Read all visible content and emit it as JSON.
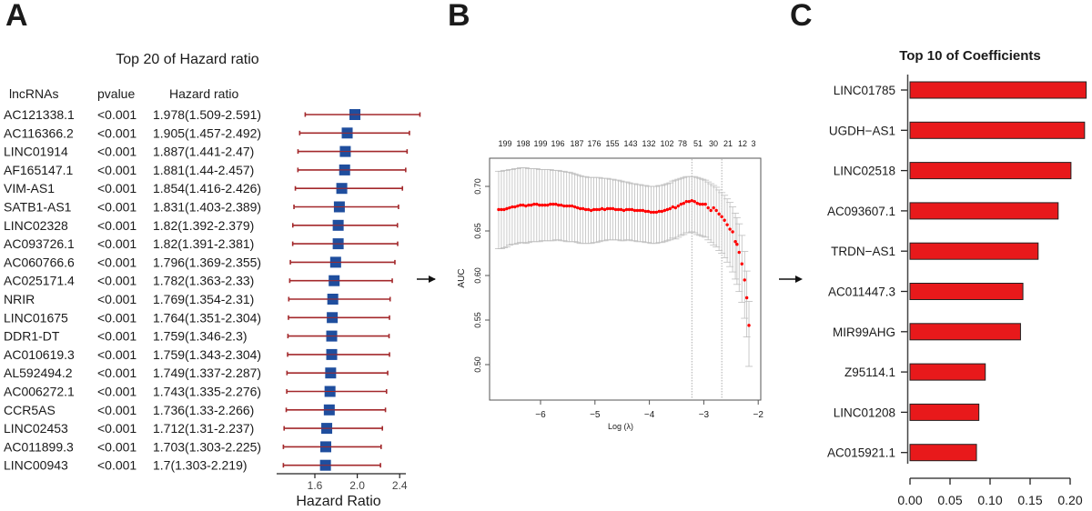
{
  "panels": {
    "a_letter": "A",
    "b_letter": "B",
    "c_letter": "C"
  },
  "chart_data": [
    {
      "type": "table",
      "subtype": "forest",
      "panel": "A",
      "title": "Top 20 of  Hazard ratio",
      "columns": [
        "lncRNAs",
        "pvalue",
        "Hazard ratio"
      ],
      "xlabel": "Hazard Ratio",
      "xticks": [
        1.6,
        2.0,
        2.4
      ],
      "xlim": [
        1.25,
        2.65
      ],
      "colors": {
        "box": "#1f4e9e",
        "ci": "#a3282b"
      },
      "rows": [
        {
          "name": "AC121338.1",
          "p": "<0.001",
          "hr_text": "1.978(1.509-2.591)",
          "hr": 1.978,
          "lo": 1.509,
          "hi": 2.591
        },
        {
          "name": "AC116366.2",
          "p": "<0.001",
          "hr_text": "1.905(1.457-2.492)",
          "hr": 1.905,
          "lo": 1.457,
          "hi": 2.492
        },
        {
          "name": "LINC01914",
          "p": "<0.001",
          "hr_text": "1.887(1.441-2.47)",
          "hr": 1.887,
          "lo": 1.441,
          "hi": 2.47
        },
        {
          "name": "AF165147.1",
          "p": "<0.001",
          "hr_text": "1.881(1.44-2.457)",
          "hr": 1.881,
          "lo": 1.44,
          "hi": 2.457
        },
        {
          "name": "VIM-AS1",
          "p": "<0.001",
          "hr_text": "1.854(1.416-2.426)",
          "hr": 1.854,
          "lo": 1.416,
          "hi": 2.426
        },
        {
          "name": "SATB1-AS1",
          "p": "<0.001",
          "hr_text": "1.831(1.403-2.389)",
          "hr": 1.831,
          "lo": 1.403,
          "hi": 2.389
        },
        {
          "name": "LINC02328",
          "p": "<0.001",
          "hr_text": "1.82(1.392-2.379)",
          "hr": 1.82,
          "lo": 1.392,
          "hi": 2.379
        },
        {
          "name": "AC093726.1",
          "p": "<0.001",
          "hr_text": "1.82(1.391-2.381)",
          "hr": 1.82,
          "lo": 1.391,
          "hi": 2.381
        },
        {
          "name": "AC060766.6",
          "p": "<0.001",
          "hr_text": "1.796(1.369-2.355)",
          "hr": 1.796,
          "lo": 1.369,
          "hi": 2.355
        },
        {
          "name": "AC025171.4",
          "p": "<0.001",
          "hr_text": "1.782(1.363-2.33)",
          "hr": 1.782,
          "lo": 1.363,
          "hi": 2.33
        },
        {
          "name": "NRIR",
          "p": "<0.001",
          "hr_text": "1.769(1.354-2.31)",
          "hr": 1.769,
          "lo": 1.354,
          "hi": 2.31
        },
        {
          "name": "LINC01675",
          "p": "<0.001",
          "hr_text": "1.764(1.351-2.304)",
          "hr": 1.764,
          "lo": 1.351,
          "hi": 2.304
        },
        {
          "name": "DDR1-DT",
          "p": "<0.001",
          "hr_text": "1.759(1.346-2.3)",
          "hr": 1.759,
          "lo": 1.346,
          "hi": 2.3
        },
        {
          "name": "AC010619.3",
          "p": "<0.001",
          "hr_text": "1.759(1.343-2.304)",
          "hr": 1.759,
          "lo": 1.343,
          "hi": 2.304
        },
        {
          "name": "AL592494.2",
          "p": "<0.001",
          "hr_text": "1.749(1.337-2.287)",
          "hr": 1.749,
          "lo": 1.337,
          "hi": 2.287
        },
        {
          "name": "AC006272.1",
          "p": "<0.001",
          "hr_text": "1.743(1.335-2.276)",
          "hr": 1.743,
          "lo": 1.335,
          "hi": 2.276
        },
        {
          "name": "CCR5AS",
          "p": "<0.001",
          "hr_text": "1.736(1.33-2.266)",
          "hr": 1.736,
          "lo": 1.33,
          "hi": 2.266
        },
        {
          "name": "LINC02453",
          "p": "<0.001",
          "hr_text": "1.712(1.31-2.237)",
          "hr": 1.712,
          "lo": 1.31,
          "hi": 2.237
        },
        {
          "name": "AC011899.3",
          "p": "<0.001",
          "hr_text": "1.703(1.303-2.225)",
          "hr": 1.703,
          "lo": 1.303,
          "hi": 2.225
        },
        {
          "name": "LINC00943",
          "p": "<0.001",
          "hr_text": "1.7(1.303-2.219)",
          "hr": 1.7,
          "lo": 1.303,
          "hi": 2.219
        }
      ]
    },
    {
      "type": "scatter",
      "subtype": "lasso-cv-errorbar",
      "panel": "B",
      "title": "",
      "xlabel": "Log (λ)",
      "ylabel": "AUC",
      "xlim": [
        -6.94,
        -2.03
      ],
      "ylim": [
        0.467,
        0.733
      ],
      "xticks": [
        -6,
        -5,
        -4,
        -3,
        -2
      ],
      "yticks": [
        0.5,
        0.55,
        0.6,
        0.65,
        0.7
      ],
      "top_axis_labels": [
        "199",
        "198",
        "199",
        "196",
        "187",
        "176",
        "155",
        "143",
        "132",
        "102",
        "78",
        "51",
        "30",
        "21",
        "12",
        "3"
      ],
      "vlines": [
        -3.22,
        -2.67
      ],
      "colors": {
        "point": "#ff0000",
        "errorbar": "#bdbdbd",
        "vline": "#999999"
      },
      "points": [
        [
          -6.77,
          0.674,
          0.717,
          0.63
        ],
        [
          -6.72,
          0.674,
          0.717,
          0.63
        ],
        [
          -6.67,
          0.674,
          0.718,
          0.631
        ],
        [
          -6.62,
          0.675,
          0.718,
          0.632
        ],
        [
          -6.57,
          0.676,
          0.719,
          0.634
        ],
        [
          -6.52,
          0.677,
          0.719,
          0.635
        ],
        [
          -6.47,
          0.677,
          0.72,
          0.635
        ],
        [
          -6.42,
          0.678,
          0.72,
          0.636
        ],
        [
          -6.37,
          0.679,
          0.721,
          0.637
        ],
        [
          -6.32,
          0.679,
          0.721,
          0.637
        ],
        [
          -6.27,
          0.678,
          0.721,
          0.636
        ],
        [
          -6.22,
          0.679,
          0.72,
          0.637
        ],
        [
          -6.17,
          0.679,
          0.72,
          0.638
        ],
        [
          -6.12,
          0.68,
          0.72,
          0.638
        ],
        [
          -6.07,
          0.68,
          0.72,
          0.638
        ],
        [
          -6.02,
          0.679,
          0.719,
          0.638
        ],
        [
          -5.97,
          0.679,
          0.719,
          0.639
        ],
        [
          -5.92,
          0.679,
          0.719,
          0.639
        ],
        [
          -5.87,
          0.679,
          0.719,
          0.639
        ],
        [
          -5.82,
          0.68,
          0.719,
          0.639
        ],
        [
          -5.77,
          0.68,
          0.718,
          0.639
        ],
        [
          -5.72,
          0.68,
          0.718,
          0.64
        ],
        [
          -5.67,
          0.679,
          0.718,
          0.64
        ],
        [
          -5.62,
          0.679,
          0.717,
          0.639
        ],
        [
          -5.57,
          0.678,
          0.717,
          0.639
        ],
        [
          -5.52,
          0.678,
          0.716,
          0.638
        ],
        [
          -5.47,
          0.678,
          0.716,
          0.638
        ],
        [
          -5.42,
          0.678,
          0.715,
          0.638
        ],
        [
          -5.37,
          0.677,
          0.714,
          0.638
        ],
        [
          -5.32,
          0.676,
          0.713,
          0.637
        ],
        [
          -5.27,
          0.675,
          0.712,
          0.636
        ],
        [
          -5.22,
          0.675,
          0.711,
          0.636
        ],
        [
          -5.17,
          0.674,
          0.711,
          0.636
        ],
        [
          -5.12,
          0.674,
          0.71,
          0.636
        ],
        [
          -5.07,
          0.673,
          0.71,
          0.636
        ],
        [
          -5.02,
          0.674,
          0.71,
          0.637
        ],
        [
          -4.97,
          0.674,
          0.71,
          0.637
        ],
        [
          -4.92,
          0.674,
          0.71,
          0.638
        ],
        [
          -4.87,
          0.675,
          0.709,
          0.639
        ],
        [
          -4.82,
          0.674,
          0.709,
          0.639
        ],
        [
          -4.77,
          0.675,
          0.709,
          0.64
        ],
        [
          -4.72,
          0.675,
          0.708,
          0.64
        ],
        [
          -4.67,
          0.675,
          0.708,
          0.64
        ],
        [
          -4.62,
          0.674,
          0.707,
          0.64
        ],
        [
          -4.57,
          0.674,
          0.707,
          0.64
        ],
        [
          -4.52,
          0.674,
          0.706,
          0.639
        ],
        [
          -4.47,
          0.673,
          0.705,
          0.639
        ],
        [
          -4.42,
          0.674,
          0.705,
          0.64
        ],
        [
          -4.37,
          0.674,
          0.704,
          0.64
        ],
        [
          -4.32,
          0.674,
          0.703,
          0.639
        ],
        [
          -4.27,
          0.673,
          0.703,
          0.639
        ],
        [
          -4.22,
          0.673,
          0.702,
          0.638
        ],
        [
          -4.17,
          0.673,
          0.702,
          0.638
        ],
        [
          -4.12,
          0.673,
          0.701,
          0.638
        ],
        [
          -4.07,
          0.672,
          0.701,
          0.637
        ],
        [
          -4.02,
          0.672,
          0.7,
          0.637
        ],
        [
          -3.97,
          0.671,
          0.7,
          0.636
        ],
        [
          -3.92,
          0.671,
          0.7,
          0.636
        ],
        [
          -3.87,
          0.671,
          0.7,
          0.636
        ],
        [
          -3.82,
          0.672,
          0.701,
          0.637
        ],
        [
          -3.77,
          0.672,
          0.701,
          0.637
        ],
        [
          -3.72,
          0.673,
          0.702,
          0.638
        ],
        [
          -3.67,
          0.674,
          0.703,
          0.639
        ],
        [
          -3.62,
          0.675,
          0.704,
          0.64
        ],
        [
          -3.57,
          0.677,
          0.706,
          0.642
        ],
        [
          -3.52,
          0.676,
          0.707,
          0.641
        ],
        [
          -3.47,
          0.678,
          0.708,
          0.643
        ],
        [
          -3.42,
          0.68,
          0.709,
          0.645
        ],
        [
          -3.37,
          0.681,
          0.71,
          0.646
        ],
        [
          -3.32,
          0.683,
          0.711,
          0.648
        ],
        [
          -3.27,
          0.683,
          0.711,
          0.648
        ],
        [
          -3.22,
          0.684,
          0.711,
          0.649
        ],
        [
          -3.17,
          0.683,
          0.711,
          0.648
        ],
        [
          -3.12,
          0.681,
          0.71,
          0.646
        ],
        [
          -3.07,
          0.68,
          0.709,
          0.645
        ],
        [
          -3.02,
          0.68,
          0.708,
          0.644
        ],
        [
          -2.97,
          0.68,
          0.707,
          0.643
        ],
        [
          -2.92,
          0.676,
          0.705,
          0.64
        ],
        [
          -2.87,
          0.673,
          0.703,
          0.637
        ],
        [
          -2.82,
          0.676,
          0.701,
          0.634
        ],
        [
          -2.77,
          0.673,
          0.699,
          0.632
        ],
        [
          -2.72,
          0.669,
          0.696,
          0.628
        ],
        [
          -2.67,
          0.666,
          0.693,
          0.625
        ],
        [
          -2.62,
          0.662,
          0.69,
          0.62
        ],
        [
          -2.57,
          0.657,
          0.686,
          0.615
        ],
        [
          -2.52,
          0.652,
          0.682,
          0.61
        ],
        [
          -2.47,
          0.649,
          0.677,
          0.604
        ],
        [
          -2.42,
          0.638,
          0.67,
          0.596
        ],
        [
          -2.39,
          0.635,
          0.665,
          0.59
        ],
        [
          -2.35,
          0.626,
          0.658,
          0.582
        ],
        [
          -2.3,
          0.613,
          0.645,
          0.57
        ],
        [
          -2.25,
          0.595,
          0.627,
          0.552
        ],
        [
          -2.21,
          0.575,
          0.605,
          0.531
        ],
        [
          -2.17,
          0.544,
          0.571,
          0.498
        ]
      ]
    },
    {
      "type": "bar",
      "orientation": "horizontal",
      "panel": "C",
      "title": "Top 10 of Coefficients",
      "xlabel": "",
      "ylabel": "",
      "xlim": [
        0,
        0.22
      ],
      "xticks": [
        0.0,
        0.05,
        0.1,
        0.15,
        0.2
      ],
      "xtick_labels": [
        "0.00",
        "0.05",
        "0.10",
        "0.15",
        "0.20"
      ],
      "colors": {
        "bar": "#e8191b",
        "edge": "#222222"
      },
      "categories": [
        "LINC01785",
        "UGDH−AS1",
        "LINC02518",
        "AC093607.1",
        "TRDN−AS1",
        "AC011447.3",
        "MIR99AHG",
        "Z95114.1",
        "LINC01208",
        "AC015921.1"
      ],
      "values": [
        0.22,
        0.218,
        0.201,
        0.185,
        0.16,
        0.141,
        0.138,
        0.094,
        0.086,
        0.083
      ]
    }
  ]
}
